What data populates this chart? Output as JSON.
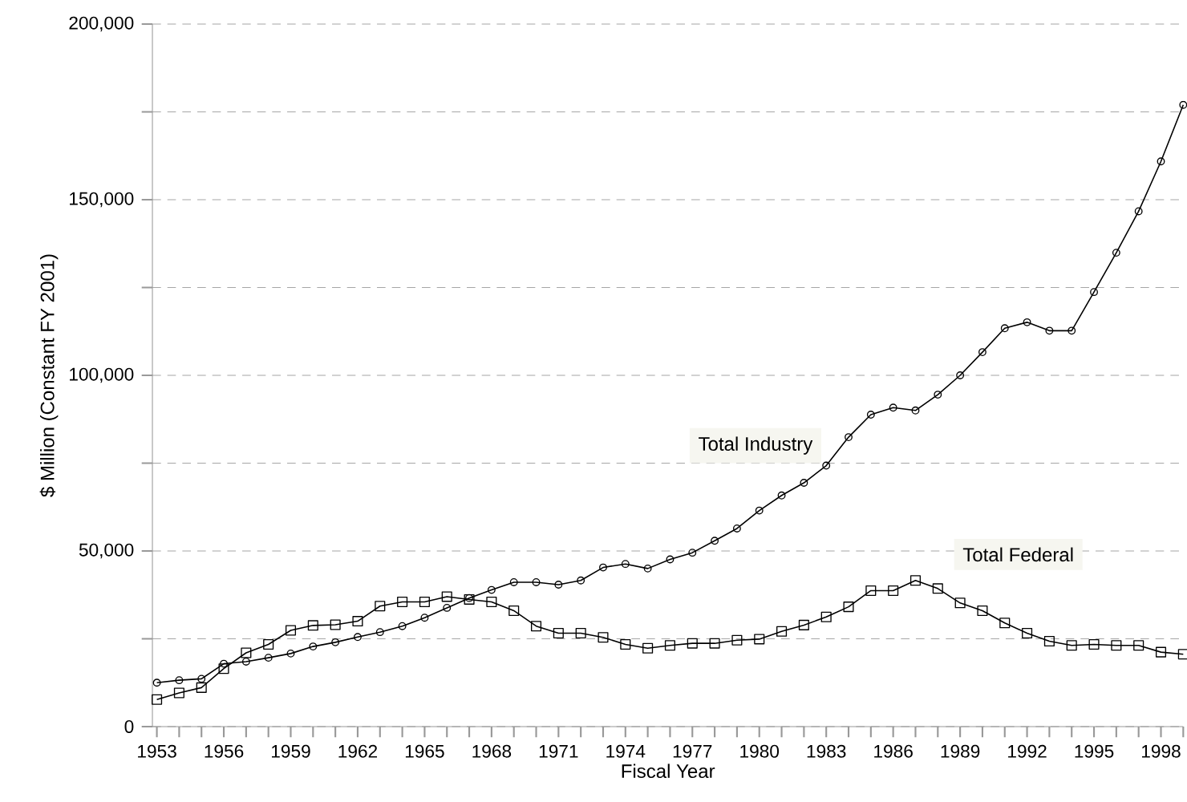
{
  "chart_data": {
    "type": "line",
    "xlabel": "Fiscal Year",
    "ylabel": "$ Million (Constant FY 2001)",
    "x": [
      1953,
      1954,
      1955,
      1956,
      1957,
      1958,
      1959,
      1960,
      1961,
      1962,
      1963,
      1964,
      1965,
      1966,
      1967,
      1968,
      1969,
      1970,
      1971,
      1972,
      1973,
      1974,
      1975,
      1976,
      1977,
      1978,
      1979,
      1980,
      1981,
      1982,
      1983,
      1984,
      1985,
      1986,
      1987,
      1988,
      1989,
      1990,
      1991,
      1992,
      1993,
      1994,
      1995,
      1996,
      1997,
      1998,
      1999
    ],
    "series": [
      {
        "name": "Total Industry",
        "color": "#000000",
        "marker": "circle",
        "values": [
          12500,
          13200,
          13600,
          17900,
          18500,
          19600,
          20800,
          22800,
          24000,
          25500,
          26900,
          28600,
          31000,
          33800,
          36600,
          38900,
          41100,
          41100,
          40400,
          41600,
          45300,
          46300,
          45000,
          47600,
          49500,
          52900,
          56400,
          61500,
          65800,
          69400,
          74300,
          82400,
          88800,
          90800,
          90000,
          94500,
          100000,
          106600,
          113400,
          115100,
          112700,
          112700,
          123700,
          134900,
          146700,
          160900,
          177000
        ]
      },
      {
        "name": "Total Federal",
        "color": "#000000",
        "marker": "square",
        "values": [
          7700,
          9600,
          11100,
          16500,
          21000,
          23400,
          27400,
          28800,
          29000,
          30000,
          34300,
          35500,
          35500,
          37000,
          36200,
          35500,
          33000,
          28600,
          26600,
          26600,
          25400,
          23400,
          22300,
          23100,
          23700,
          23700,
          24600,
          24900,
          27100,
          28900,
          31200,
          34100,
          38700,
          38700,
          41600,
          39300,
          35200,
          33000,
          29500,
          26600,
          24300,
          23100,
          23400,
          23100,
          23100,
          21200,
          20600
        ]
      }
    ],
    "xlim": [
      1952.8,
      1999
    ],
    "xticks": [
      1953,
      {
        "value": 1954,
        "label": null
      },
      {
        "value": 1955,
        "label": null
      },
      1956,
      {
        "value": 1957,
        "label": null
      },
      {
        "value": 1958,
        "label": null
      },
      1959,
      {
        "value": 1960,
        "label": null
      },
      {
        "value": 1961,
        "label": null
      },
      1962,
      {
        "value": 1963,
        "label": null
      },
      {
        "value": 1964,
        "label": null
      },
      1965,
      {
        "value": 1966,
        "label": null
      },
      {
        "value": 1967,
        "label": null
      },
      1968,
      {
        "value": 1969,
        "label": null
      },
      {
        "value": 1970,
        "label": null
      },
      1971,
      {
        "value": 1972,
        "label": null
      },
      {
        "value": 1973,
        "label": null
      },
      1974,
      {
        "value": 1975,
        "label": null
      },
      {
        "value": 1976,
        "label": null
      },
      1977,
      {
        "value": 1978,
        "label": null
      },
      {
        "value": 1979,
        "label": null
      },
      1980,
      {
        "value": 1981,
        "label": null
      },
      {
        "value": 1982,
        "label": null
      },
      1983,
      {
        "value": 1984,
        "label": null
      },
      {
        "value": 1985,
        "label": null
      },
      1986,
      {
        "value": 1987,
        "label": null
      },
      {
        "value": 1988,
        "label": null
      },
      1989,
      {
        "value": 1990,
        "label": null
      },
      {
        "value": 1991,
        "label": null
      },
      1992,
      {
        "value": 1993,
        "label": null
      },
      {
        "value": 1994,
        "label": null
      },
      1995,
      {
        "value": 1996,
        "label": null
      },
      {
        "value": 1997,
        "label": null
      },
      1998,
      {
        "value": 1999,
        "label": null
      }
    ],
    "ylim": [
      0,
      200000
    ],
    "yticks": [
      0,
      {
        "value": 25000,
        "label": null
      },
      {
        "value": 50000,
        "label": "50,000"
      },
      {
        "value": 75000,
        "label": null
      },
      {
        "value": 100000,
        "label": "100,000"
      },
      {
        "value": 125000,
        "label": null
      },
      {
        "value": 150000,
        "label": "150,000"
      },
      {
        "value": 175000,
        "label": null
      },
      {
        "value": 200000,
        "label": "200,000"
      }
    ],
    "grid": "y",
    "line_style": "solid",
    "legend": false
  }
}
